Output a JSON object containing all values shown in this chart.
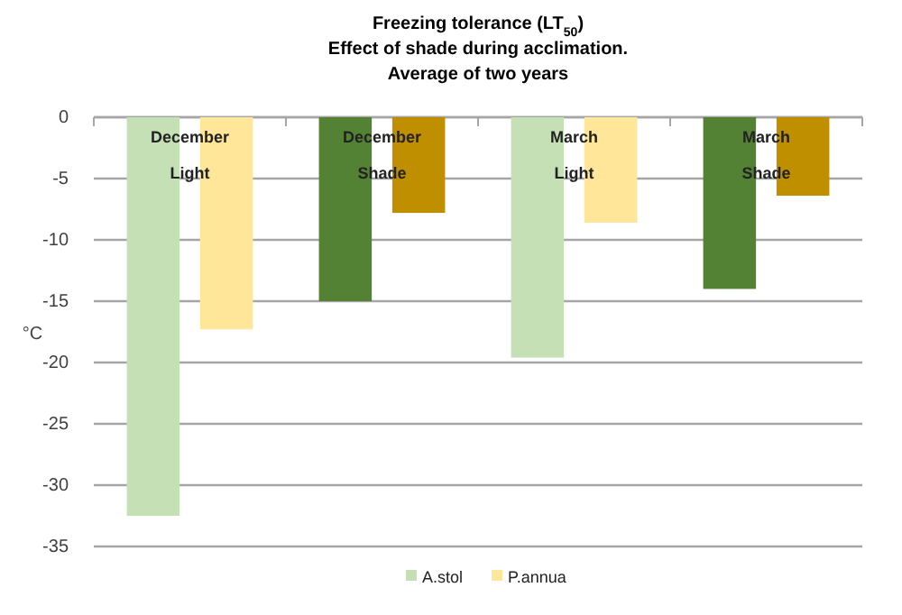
{
  "chart_data": {
    "type": "bar",
    "title": "Freezing tolerance (LT$_{50}$)",
    "subtitle": "Effect of shade during acclimation.\nAverage of two years",
    "ylabel": "°C",
    "categories": [
      "December Light",
      "December Shade",
      "March Light",
      "March Shade"
    ],
    "series": [
      {
        "name": "A.stol",
        "color": "#c5e0b4",
        "colors": [
          "#c5e0b4",
          "#548235",
          "#c5e0b4",
          "#548235"
        ],
        "values": [
          -32.5,
          -15,
          -19.6,
          -14
        ]
      },
      {
        "name": "P.annua",
        "color": "#ffe699",
        "colors": [
          "#ffe699",
          "#bf8f00",
          "#ffe699",
          "#bf8f00"
        ],
        "values": [
          -17.3,
          -7.8,
          -8.6,
          -6.4
        ]
      }
    ],
    "ylim": [
      -35,
      0
    ],
    "yticks": [
      -35,
      -30,
      -25,
      -20,
      -15,
      -10,
      -5,
      0
    ],
    "grid": "y",
    "legend": "bottom"
  }
}
